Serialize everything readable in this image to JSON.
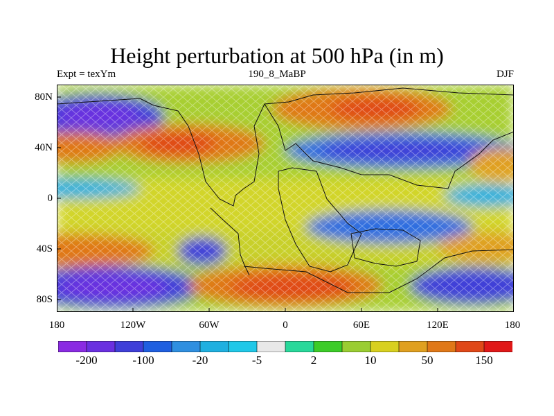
{
  "header": {
    "title": "Height perturbation at 500 hPa (in m)",
    "left_label": "Expt = texYm",
    "center_label": "190_8_MaBP",
    "right_label": "DJF"
  },
  "axes": {
    "y_labels": [
      "80N",
      "40N",
      "0",
      "40S",
      "80S"
    ],
    "x_labels": [
      "180",
      "120W",
      "60W",
      "0",
      "60E",
      "120E",
      "180"
    ],
    "lat_range": [
      -90,
      90
    ],
    "lon_range": [
      -180,
      180
    ]
  },
  "chart_data": {
    "type": "heatmap",
    "title": "Height perturbation at 500 hPa (in m)",
    "variable": "500 hPa height perturbation",
    "units": "m",
    "season": "DJF",
    "colorbar": {
      "tick_labels": [
        "-200",
        "-100",
        "-20",
        "-5",
        "2",
        "10",
        "50",
        "150"
      ],
      "colors": [
        "#8a2be2",
        "#6a30e0",
        "#3f3fd8",
        "#1f5fe0",
        "#2f8fe0",
        "#1fb0e0",
        "#20c8e8",
        "#e8e8e8",
        "#28d89a",
        "#3ccc28",
        "#9acd32",
        "#d8d020",
        "#e0a020",
        "#e07818",
        "#e04818",
        "#e01818"
      ]
    },
    "field_pattern": [
      {
        "region": "Arctic Pacific",
        "sign": "negative",
        "level": "strong"
      },
      {
        "region": "Mid-latitude Atlantic / North America",
        "sign": "positive",
        "level": "strong"
      },
      {
        "region": "Eurasia high latitudes",
        "sign": "positive",
        "level": "strong"
      },
      {
        "region": "Mid-latitude Eurasia",
        "sign": "negative",
        "level": "strong"
      },
      {
        "region": "Southern ocean Pacific",
        "sign": "negative",
        "level": "strong"
      },
      {
        "region": "Southern ocean Atlantic/Indian",
        "sign": "positive",
        "level": "strong"
      }
    ]
  }
}
